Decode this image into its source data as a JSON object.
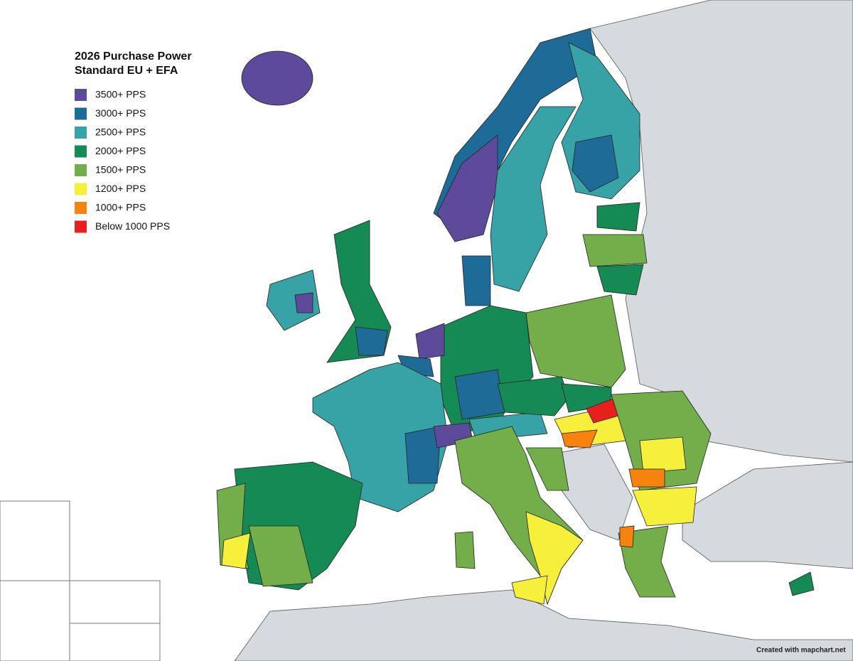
{
  "title": "2026 Purchase Power Standard EU + EFA",
  "legend": [
    {
      "label": "3500+ PPS",
      "color": "#5e4a9b"
    },
    {
      "label": "3000+ PPS",
      "color": "#1f6b98"
    },
    {
      "label": "2500+ PPS",
      "color": "#37a3a6"
    },
    {
      "label": "2000+ PPS",
      "color": "#168a55"
    },
    {
      "label": "1500+ PPS",
      "color": "#74ae4b"
    },
    {
      "label": "1200+ PPS",
      "color": "#f6f03c"
    },
    {
      "label": "1000+ PPS",
      "color": "#f7820e"
    },
    {
      "label": "Below 1000 PPS",
      "color": "#e61f1f"
    }
  ],
  "credit": "Created with mapchart.net"
}
